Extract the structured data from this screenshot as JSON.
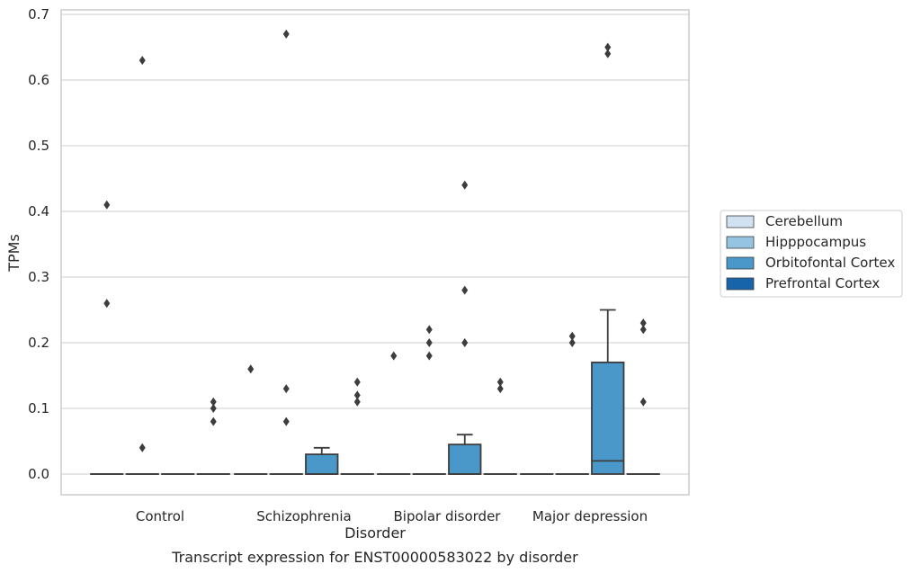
{
  "chart_data": {
    "type": "box",
    "xlabel": "Disorder",
    "ylabel": "TPMs",
    "caption": "Transcript expression for ENST00000583022 by disorder",
    "ylim": [
      -0.032,
      0.705
    ],
    "yticks": [
      0.0,
      0.1,
      0.2,
      0.3,
      0.4,
      0.5,
      0.6,
      0.7
    ],
    "ytick_labels": [
      "0.0",
      "0.1",
      "0.2",
      "0.3",
      "0.4",
      "0.5",
      "0.6",
      "0.7"
    ],
    "grid": true,
    "legend_position": "right",
    "categories": [
      "Control",
      "Schizophrenia",
      "Bipolar disorder",
      "Major depression"
    ],
    "series": [
      {
        "name": "Cerebellum",
        "color": "#d0e1f2",
        "boxes": [
          {
            "q1": 0,
            "median": 0,
            "q3": 0,
            "whisker_low": 0,
            "whisker_high": 0,
            "fliers": [
              0.41,
              0.26
            ]
          },
          {
            "q1": 0,
            "median": 0,
            "q3": 0,
            "whisker_low": 0,
            "whisker_high": 0,
            "fliers": [
              0.16
            ]
          },
          {
            "q1": 0,
            "median": 0,
            "q3": 0,
            "whisker_low": 0,
            "whisker_high": 0,
            "fliers": [
              0.18
            ]
          },
          {
            "q1": 0,
            "median": 0,
            "q3": 0,
            "whisker_low": 0,
            "whisker_high": 0,
            "fliers": []
          }
        ]
      },
      {
        "name": "Hipppocampus",
        "color": "#94c4df",
        "boxes": [
          {
            "q1": 0,
            "median": 0,
            "q3": 0,
            "whisker_low": 0,
            "whisker_high": 0,
            "fliers": [
              0.63,
              0.04
            ]
          },
          {
            "q1": 0,
            "median": 0,
            "q3": 0,
            "whisker_low": 0,
            "whisker_high": 0,
            "fliers": [
              0.67,
              0.13,
              0.08
            ]
          },
          {
            "q1": 0,
            "median": 0,
            "q3": 0,
            "whisker_low": 0,
            "whisker_high": 0,
            "fliers": [
              0.22,
              0.2,
              0.18
            ]
          },
          {
            "q1": 0,
            "median": 0,
            "q3": 0,
            "whisker_low": 0,
            "whisker_high": 0,
            "fliers": [
              0.21,
              0.2
            ]
          }
        ]
      },
      {
        "name": "Orbitofontal Cortex",
        "color": "#4a98c9",
        "boxes": [
          {
            "q1": 0,
            "median": 0,
            "q3": 0,
            "whisker_low": 0,
            "whisker_high": 0,
            "fliers": []
          },
          {
            "q1": 0,
            "median": 0,
            "q3": 0.03,
            "whisker_low": 0,
            "whisker_high": 0.04,
            "fliers": []
          },
          {
            "q1": 0,
            "median": 0,
            "q3": 0.045,
            "whisker_low": 0,
            "whisker_high": 0.06,
            "fliers": [
              0.44,
              0.28,
              0.2
            ]
          },
          {
            "q1": 0,
            "median": 0.02,
            "q3": 0.17,
            "whisker_low": 0,
            "whisker_high": 0.25,
            "fliers": [
              0.65,
              0.64
            ]
          }
        ]
      },
      {
        "name": "Prefrontal Cortex",
        "color": "#1764ab",
        "boxes": [
          {
            "q1": 0,
            "median": 0,
            "q3": 0,
            "whisker_low": 0,
            "whisker_high": 0,
            "fliers": [
              0.11,
              0.1,
              0.08
            ]
          },
          {
            "q1": 0,
            "median": 0,
            "q3": 0,
            "whisker_low": 0,
            "whisker_high": 0,
            "fliers": [
              0.14,
              0.12,
              0.11
            ]
          },
          {
            "q1": 0,
            "median": 0,
            "q3": 0,
            "whisker_low": 0,
            "whisker_high": 0,
            "fliers": [
              0.14,
              0.13
            ]
          },
          {
            "q1": 0,
            "median": 0,
            "q3": 0,
            "whisker_low": 0,
            "whisker_high": 0,
            "fliers": [
              0.23,
              0.22,
              0.11
            ]
          }
        ]
      }
    ]
  }
}
